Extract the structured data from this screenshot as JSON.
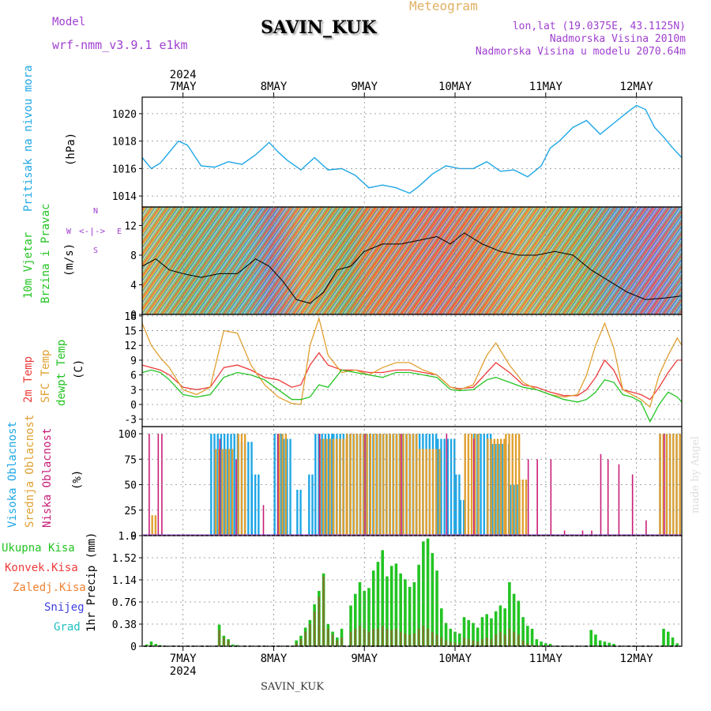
{
  "header": {
    "model_label": "Model",
    "model_name": "wrf-nmm_v3.9.1 e1km",
    "station": "SAVIN_KUK",
    "product": "Meteogram",
    "lonlat": "lon,lat (19.0375E, 43.1125N)",
    "elevation": "Nadmorska Visina 2010m",
    "model_elevation": "Nadmorska Visina u modelu 2070.64m",
    "footer_station": "SAVIN_KUK",
    "credit": "made by Angel"
  },
  "colors": {
    "pressure": "#1ea7e6",
    "temp2m": "#ee3a3a",
    "sfc": "#e0a030",
    "dewpt": "#22c422",
    "high_cloud": "#1ea7e6",
    "mid_cloud": "#e0a030",
    "low_cloud": "#c81e78",
    "total_precip": "#22c422",
    "conv_precip": "#ee3a3a",
    "frozen_precip": "#f08030",
    "snow": "#4040e0",
    "graupel": "#20c0c0",
    "accent_purple": "#a040d0",
    "title_orange": "#e0b060"
  },
  "time_axis": {
    "year": "2024",
    "days": [
      "7MAY",
      "8MAY",
      "9MAY",
      "10MAY",
      "11MAY",
      "12MAY"
    ],
    "range_days": [
      6.55,
      12.5
    ]
  },
  "panels": {
    "pressure": {
      "ylabel": "Pritisak na nivou mora",
      "unit": "(hPa)",
      "ticks": [
        "1014",
        "1016",
        "1018",
        "1020"
      ]
    },
    "wind": {
      "ylabel_1": "10m Vjetar",
      "ylabel_2": "Brzina i Pravac",
      "unit": "(m/s)",
      "ticks": [
        "0",
        "4",
        "8",
        "12"
      ],
      "compass": [
        "N",
        "S",
        "W",
        "E"
      ]
    },
    "temp": {
      "ylabel_1": "2m Temp",
      "ylabel_2": "SFC Temp",
      "ylabel_3": "dewpt Temp",
      "unit": "(C)",
      "ticks": [
        "-3",
        "0",
        "3",
        "6",
        "9",
        "12",
        "15",
        "18"
      ]
    },
    "cloud": {
      "ylabel_1": "Visoka Oblacnost",
      "ylabel_2": "Srednja Oblacnost",
      "ylabel_3": "Niska Oblacnost",
      "unit": "(%)",
      "ticks": [
        "0",
        "25",
        "50",
        "75",
        "100"
      ]
    },
    "precip": {
      "ylabel": "1hr Precip (mm)",
      "ticks": [
        "0",
        "0.38",
        "0.76",
        "1.14",
        "1.52",
        "1.9"
      ],
      "legend": [
        "Ukupna Kisa",
        "Konvek.Kisa",
        "Zaledj.Kisa",
        "Snijeg",
        "Grad"
      ]
    }
  },
  "chart_data": [
    {
      "type": "line",
      "name": "pressure",
      "ylabel": "Pritisak na nivou mora (hPa)",
      "ylim": [
        1013.2,
        1021.2
      ],
      "x": [
        6.55,
        6.65,
        6.75,
        6.85,
        6.95,
        7.05,
        7.2,
        7.35,
        7.5,
        7.65,
        7.8,
        7.95,
        8.05,
        8.15,
        8.3,
        8.45,
        8.6,
        8.75,
        8.9,
        9.05,
        9.2,
        9.35,
        9.5,
        9.6,
        9.75,
        9.9,
        10.05,
        10.2,
        10.35,
        10.5,
        10.65,
        10.8,
        10.95,
        11.05,
        11.15,
        11.3,
        11.45,
        11.6,
        11.75,
        11.9,
        12.0,
        12.1,
        12.2,
        12.3,
        12.4,
        12.5
      ],
      "values": [
        1016.8,
        1016.0,
        1016.4,
        1017.2,
        1018.0,
        1017.7,
        1016.2,
        1016.1,
        1016.5,
        1016.3,
        1017.0,
        1017.9,
        1017.2,
        1016.6,
        1015.9,
        1016.8,
        1015.9,
        1016.0,
        1015.5,
        1014.6,
        1014.8,
        1014.6,
        1014.2,
        1014.7,
        1015.6,
        1016.2,
        1016.0,
        1016.0,
        1016.5,
        1015.8,
        1015.9,
        1015.4,
        1016.2,
        1017.5,
        1018.0,
        1019.0,
        1019.5,
        1018.5,
        1019.3,
        1020.1,
        1020.6,
        1020.3,
        1019.0,
        1018.3,
        1017.5,
        1016.8
      ]
    },
    {
      "type": "line",
      "name": "wind_speed",
      "ylabel": "10m Vjetar (m/s)",
      "ylim": [
        0,
        14.5
      ],
      "x": [
        6.55,
        6.7,
        6.85,
        7.0,
        7.2,
        7.4,
        7.6,
        7.8,
        7.95,
        8.1,
        8.25,
        8.4,
        8.55,
        8.7,
        8.85,
        9.0,
        9.2,
        9.4,
        9.6,
        9.8,
        9.95,
        10.1,
        10.3,
        10.5,
        10.7,
        10.9,
        11.1,
        11.3,
        11.5,
        11.7,
        11.9,
        12.1,
        12.3,
        12.5
      ],
      "values": [
        6.5,
        7.5,
        6.0,
        5.5,
        5.0,
        5.5,
        5.5,
        7.5,
        6.5,
        4.5,
        2.0,
        1.5,
        3.0,
        6.0,
        6.5,
        8.5,
        9.5,
        9.5,
        10.0,
        10.5,
        9.5,
        11.0,
        9.5,
        8.5,
        8.0,
        8.0,
        8.5,
        8.0,
        6.0,
        4.5,
        3.0,
        2.0,
        2.2,
        2.5
      ]
    },
    {
      "type": "line",
      "ylabel": "Temp (C)",
      "ylim": [
        -4.5,
        18.3
      ],
      "x": [
        6.55,
        6.65,
        6.75,
        6.85,
        7.0,
        7.15,
        7.3,
        7.45,
        7.6,
        7.75,
        7.9,
        8.05,
        8.2,
        8.3,
        8.4,
        8.5,
        8.6,
        8.75,
        8.9,
        9.05,
        9.2,
        9.35,
        9.5,
        9.65,
        9.8,
        9.95,
        10.05,
        10.2,
        10.35,
        10.45,
        10.6,
        10.75,
        10.9,
        11.05,
        11.2,
        11.35,
        11.45,
        11.55,
        11.65,
        11.75,
        11.85,
        11.95,
        12.05,
        12.15,
        12.25,
        12.35,
        12.45,
        12.5
      ],
      "series": [
        {
          "name": "2m Temp",
          "values": [
            8.0,
            7.5,
            7.0,
            6.0,
            3.5,
            3.0,
            3.5,
            7.5,
            8.0,
            7.0,
            5.5,
            5.0,
            3.5,
            4.0,
            8.0,
            10.5,
            8.0,
            7.0,
            7.0,
            6.5,
            6.5,
            7.0,
            7.0,
            6.5,
            6.0,
            3.5,
            3.2,
            3.5,
            6.5,
            8.5,
            6.5,
            4.0,
            3.5,
            2.5,
            1.8,
            1.8,
            3.0,
            5.5,
            9.0,
            7.0,
            3.0,
            2.5,
            2.0,
            1.0,
            3.5,
            6.5,
            9.0,
            9.0
          ]
        },
        {
          "name": "SFC Temp",
          "values": [
            16.5,
            12.0,
            9.5,
            7.5,
            3.0,
            2.0,
            3.5,
            15.0,
            14.5,
            8.0,
            4.0,
            1.5,
            0.2,
            0.0,
            12.0,
            17.5,
            10.0,
            6.5,
            7.0,
            6.0,
            7.5,
            8.5,
            8.5,
            7.0,
            6.0,
            3.5,
            3.0,
            4.0,
            10.0,
            12.5,
            8.0,
            4.5,
            3.0,
            2.0,
            1.5,
            2.0,
            6.0,
            12.0,
            16.5,
            11.5,
            3.0,
            2.0,
            1.0,
            -0.5,
            6.0,
            10.0,
            13.5,
            12.0
          ]
        },
        {
          "name": "dewpt Temp",
          "values": [
            6.5,
            7.0,
            6.5,
            5.0,
            2.0,
            1.5,
            2.0,
            5.5,
            6.5,
            6.0,
            5.0,
            3.0,
            1.0,
            1.0,
            1.5,
            4.0,
            3.5,
            7.0,
            6.5,
            6.0,
            5.5,
            6.5,
            6.5,
            6.0,
            5.5,
            3.0,
            2.8,
            3.0,
            5.0,
            5.5,
            4.5,
            3.5,
            3.0,
            2.0,
            1.0,
            0.5,
            1.0,
            2.5,
            5.0,
            4.5,
            2.0,
            1.5,
            0.5,
            -3.5,
            0.0,
            2.5,
            1.5,
            0.5
          ]
        }
      ]
    },
    {
      "type": "bar",
      "ylabel": "Oblacnost (%)",
      "ylim": [
        0,
        100
      ],
      "x_range": [
        6.55,
        12.5
      ],
      "series": [
        {
          "name": "Visoka Oblacnost",
          "segments": [
            [
              7.3,
              7.6,
              100
            ],
            [
              7.6,
              7.75,
              92
            ],
            [
              7.75,
              7.85,
              60
            ],
            [
              8.0,
              8.1,
              100
            ],
            [
              8.1,
              8.2,
              95
            ],
            [
              8.25,
              8.32,
              45
            ],
            [
              8.38,
              8.45,
              60
            ],
            [
              8.45,
              8.65,
              100
            ],
            [
              8.65,
              9.05,
              100
            ],
            [
              9.05,
              9.8,
              100
            ],
            [
              9.8,
              10.0,
              95
            ],
            [
              10.0,
              10.05,
              60
            ],
            [
              10.05,
              10.1,
              35
            ],
            [
              10.2,
              10.4,
              100
            ],
            [
              10.4,
              10.6,
              90
            ],
            [
              10.6,
              10.7,
              50
            ],
            [
              12.25,
              12.5,
              100
            ]
          ]
        },
        {
          "name": "Srednja Oblacnost",
          "segments": [
            [
              6.65,
              6.7,
              20
            ],
            [
              7.35,
              7.55,
              85
            ],
            [
              7.6,
              7.7,
              100
            ],
            [
              8.05,
              8.15,
              100
            ],
            [
              8.5,
              8.8,
              95
            ],
            [
              8.8,
              9.2,
              100
            ],
            [
              9.2,
              9.6,
              100
            ],
            [
              9.6,
              9.85,
              85
            ],
            [
              10.1,
              10.25,
              100
            ],
            [
              10.35,
              10.55,
              95
            ],
            [
              10.55,
              10.7,
              100
            ],
            [
              10.7,
              10.8,
              55
            ],
            [
              12.25,
              12.5,
              100
            ]
          ]
        },
        {
          "name": "Niska Oblacnost",
          "segments": [
            [
              6.62,
              6.64,
              100
            ],
            [
              6.72,
              6.74,
              100
            ],
            [
              6.76,
              6.78,
              100
            ],
            [
              7.4,
              7.42,
              95
            ],
            [
              7.58,
              7.6,
              75
            ],
            [
              7.88,
              7.9,
              30
            ],
            [
              8.04,
              8.06,
              100
            ],
            [
              8.5,
              8.52,
              100
            ],
            [
              9.0,
              9.02,
              100
            ],
            [
              9.4,
              9.42,
              100
            ],
            [
              9.9,
              9.92,
              100
            ],
            [
              10.2,
              10.22,
              95
            ],
            [
              10.8,
              10.82,
              75
            ],
            [
              10.9,
              10.92,
              75
            ],
            [
              11.05,
              11.07,
              75
            ],
            [
              11.2,
              11.22,
              5
            ],
            [
              11.4,
              11.42,
              5
            ],
            [
              11.5,
              11.52,
              5
            ],
            [
              11.6,
              11.62,
              80
            ],
            [
              11.68,
              11.7,
              75
            ],
            [
              11.8,
              11.82,
              70
            ],
            [
              11.95,
              11.97,
              60
            ],
            [
              12.1,
              12.12,
              15
            ],
            [
              12.3,
              12.32,
              100
            ]
          ]
        }
      ]
    },
    {
      "type": "bar",
      "ylabel": "1hr Precip (mm)",
      "ylim": [
        0,
        1.9
      ],
      "x": [
        6.6,
        6.65,
        6.7,
        6.75,
        7.4,
        7.45,
        7.5,
        7.55,
        7.6,
        8.25,
        8.3,
        8.35,
        8.4,
        8.45,
        8.5,
        8.55,
        8.6,
        8.65,
        8.7,
        8.75,
        8.85,
        8.9,
        8.95,
        9.0,
        9.05,
        9.1,
        9.15,
        9.2,
        9.25,
        9.3,
        9.35,
        9.4,
        9.45,
        9.5,
        9.55,
        9.6,
        9.65,
        9.7,
        9.75,
        9.8,
        9.85,
        9.9,
        9.95,
        10.0,
        10.05,
        10.1,
        10.15,
        10.2,
        10.25,
        10.3,
        10.35,
        10.4,
        10.45,
        10.5,
        10.55,
        10.6,
        10.65,
        10.7,
        10.75,
        10.8,
        10.85,
        10.9,
        10.95,
        11.0,
        11.05,
        11.5,
        11.55,
        11.6,
        11.65,
        11.7,
        11.75,
        12.3,
        12.35,
        12.4,
        12.45
      ],
      "series": [
        {
          "name": "Ukupna Kisa",
          "values": [
            0.03,
            0.08,
            0.04,
            0.02,
            0.37,
            0.18,
            0.12,
            0.03,
            0.02,
            0.1,
            0.18,
            0.32,
            0.45,
            0.72,
            0.95,
            1.25,
            0.38,
            0.25,
            0.15,
            0.3,
            0.7,
            0.9,
            1.1,
            0.95,
            1.0,
            1.3,
            1.45,
            1.65,
            1.2,
            1.38,
            1.42,
            1.25,
            1.15,
            1.02,
            1.1,
            1.4,
            1.8,
            1.85,
            1.6,
            1.3,
            0.65,
            0.4,
            0.3,
            0.25,
            0.22,
            0.5,
            0.45,
            0.4,
            0.32,
            0.5,
            0.55,
            0.48,
            0.6,
            0.7,
            0.65,
            1.1,
            0.9,
            0.78,
            0.5,
            0.35,
            0.3,
            0.12,
            0.08,
            0.05,
            0.04,
            0.28,
            0.2,
            0.1,
            0.08,
            0.06,
            0.04,
            0.3,
            0.25,
            0.15,
            0.05
          ]
        },
        {
          "name": "Konvek.Kisa",
          "values": [
            0.0,
            0.02,
            0.0,
            0.0,
            0.28,
            0.15,
            0.1,
            0.0,
            0.0,
            0.05,
            0.12,
            0.25,
            0.38,
            0.6,
            0.85,
            1.2,
            0.3,
            0.2,
            0.1,
            0.15,
            0.25,
            0.3,
            0.35,
            0.3,
            0.25,
            0.3,
            0.3,
            0.35,
            0.3,
            0.28,
            0.3,
            0.25,
            0.22,
            0.2,
            0.22,
            0.3,
            0.35,
            0.3,
            0.25,
            0.2,
            0.15,
            0.1,
            0.08,
            0.06,
            0.05,
            0.15,
            0.12,
            0.1,
            0.08,
            0.12,
            0.15,
            0.12,
            0.2,
            0.25,
            0.2,
            0.3,
            0.25,
            0.2,
            0.1,
            0.05,
            0.03,
            0.0,
            0.0,
            0.0,
            0.0,
            0.0,
            0.0,
            0.0,
            0.0,
            0.0,
            0.0,
            0.0,
            0.0,
            0.0,
            0.0
          ]
        }
      ]
    }
  ]
}
